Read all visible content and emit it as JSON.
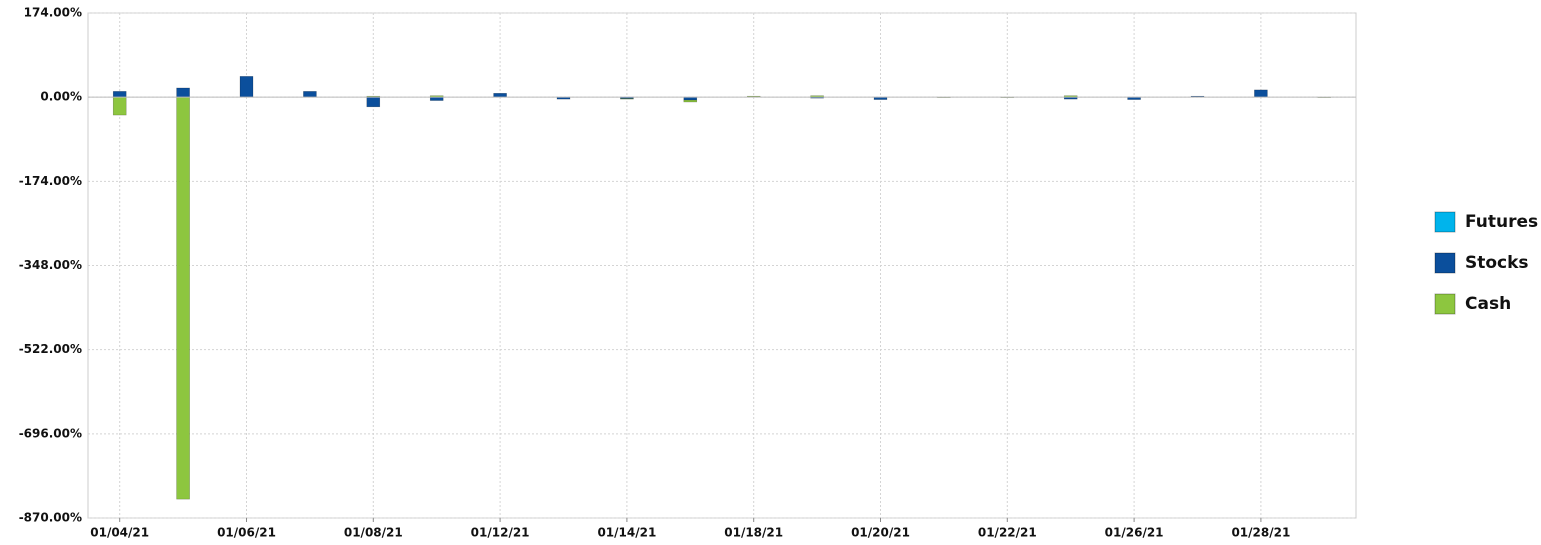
{
  "chart_data": {
    "type": "bar",
    "stacked": true,
    "categories": [
      "01/04/21",
      null,
      "01/06/21",
      null,
      "01/08/21",
      null,
      "01/12/21",
      null,
      "01/14/21",
      null,
      "01/18/21",
      null,
      "01/20/21",
      null,
      "01/22/21",
      null,
      "01/26/21",
      null,
      "01/28/21",
      null
    ],
    "series": [
      {
        "name": "Futures",
        "color": "#00b4ec",
        "values": [
          0,
          0,
          0,
          0,
          0,
          0,
          0,
          0,
          0,
          0,
          0,
          0,
          0,
          0,
          0,
          0,
          0,
          0,
          0,
          0
        ]
      },
      {
        "name": "Stocks",
        "color": "#0b4f9c",
        "values": [
          12,
          19,
          43,
          12,
          -20,
          -7,
          8,
          -4,
          -3,
          -6,
          0,
          -2,
          -5,
          0,
          0,
          -4,
          -5,
          2,
          15,
          0
        ]
      },
      {
        "name": "Cash",
        "color": "#8dc63f",
        "values": [
          -37,
          -831,
          0,
          0,
          2,
          3,
          0,
          0,
          -1,
          -4,
          2,
          3,
          0,
          -1,
          -1,
          3,
          0,
          0,
          0,
          -1
        ]
      }
    ],
    "ylim": [
      -870,
      174
    ],
    "yticks": [
      {
        "value": -870,
        "label": "-870.00%"
      },
      {
        "value": -696,
        "label": "-696.00%"
      },
      {
        "value": -522,
        "label": "-522.00%"
      },
      {
        "value": -348,
        "label": "-348.00%"
      },
      {
        "value": -174,
        "label": "-174.00%"
      },
      {
        "value": 0,
        "label": "0.00%"
      },
      {
        "value": 174,
        "label": "174.00%"
      }
    ],
    "grid": true,
    "legend": "right"
  }
}
